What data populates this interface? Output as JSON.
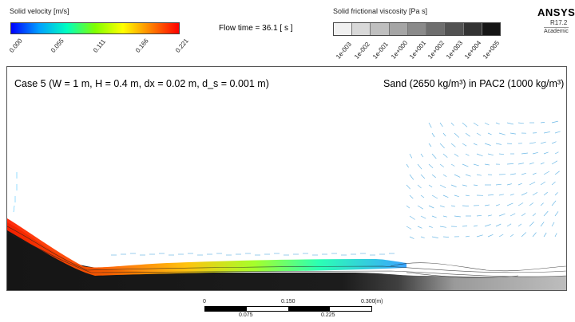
{
  "velocity_legend": {
    "title": "Solid velocity [m/s]",
    "ticks": [
      "0.000",
      "0.055",
      "0.111",
      "0.166",
      "0.221"
    ]
  },
  "flow_time": "Flow time = 36.1 [ s ]",
  "viscosity_legend": {
    "title": "Solid frictional viscosity [Pa s]",
    "ticks": [
      "1e-003",
      "1e-002",
      "1e-001",
      "1e+000",
      "1e+001",
      "1e+002",
      "1e+003",
      "1e+004",
      "1e+005"
    ],
    "swatch_colors": [
      "#f0f0f0",
      "#d8d8d8",
      "#bfbfbf",
      "#a5a5a5",
      "#8a8a8a",
      "#6e6e6e",
      "#525252",
      "#333333",
      "#151515"
    ]
  },
  "brand": {
    "name": "ANSYS",
    "version": "R17.2",
    "edition": "Academic"
  },
  "case_label": "Case 5 (W = 1 m, H = 0.4 m, dx = 0.02 m, d_s = 0.001 m)",
  "material_label": "Sand (2650 kg/m³) in PAC2 (1000 kg/m³)",
  "scale_bar": {
    "top_labels": [
      "0",
      "0.150",
      "0.300"
    ],
    "unit": "(m)",
    "bottom_labels": [
      "0.075",
      "0.225"
    ]
  },
  "colors": {
    "velocity_gradient": [
      "#0000ff",
      "#00a0ff",
      "#00ffc0",
      "#80ff00",
      "#ffff00",
      "#ff8000",
      "#ff0000"
    ],
    "sediment_dark": "#1a1a1a"
  }
}
